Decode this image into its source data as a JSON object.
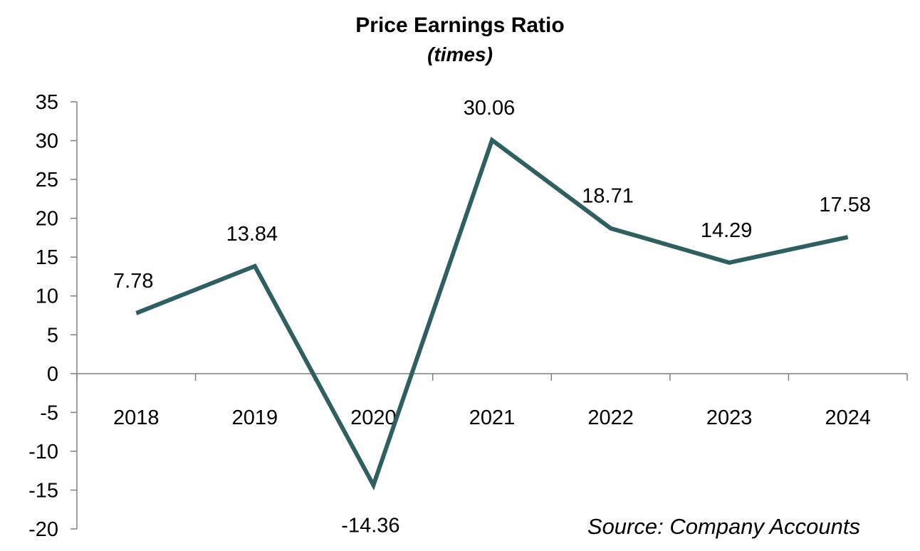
{
  "chart_data": {
    "type": "line",
    "title": "Price Earnings Ratio",
    "subtitle": "(times)",
    "xlabel": "",
    "ylabel": "",
    "categories": [
      "2018",
      "2019",
      "2020",
      "2021",
      "2022",
      "2023",
      "2024"
    ],
    "series": [
      {
        "values": [
          7.78,
          13.84,
          -14.36,
          30.06,
          18.71,
          14.29,
          17.58
        ],
        "labels": [
          "7.78",
          "13.84",
          "-14.36",
          "30.06",
          "18.71",
          "14.29",
          "17.58"
        ],
        "color": "#2E5F61"
      }
    ],
    "ylim": [
      -20,
      35
    ],
    "yticks": [
      "35",
      "30",
      "25",
      "20",
      "15",
      "10",
      "5",
      "0",
      "-5",
      "-10",
      "-15",
      "-20"
    ],
    "grid": false,
    "legend": "none",
    "source": "Source: Company Accounts",
    "colors": {
      "line": "#2E5F61",
      "axis": "#808080",
      "text": "#000000",
      "background": "#ffffff"
    }
  }
}
